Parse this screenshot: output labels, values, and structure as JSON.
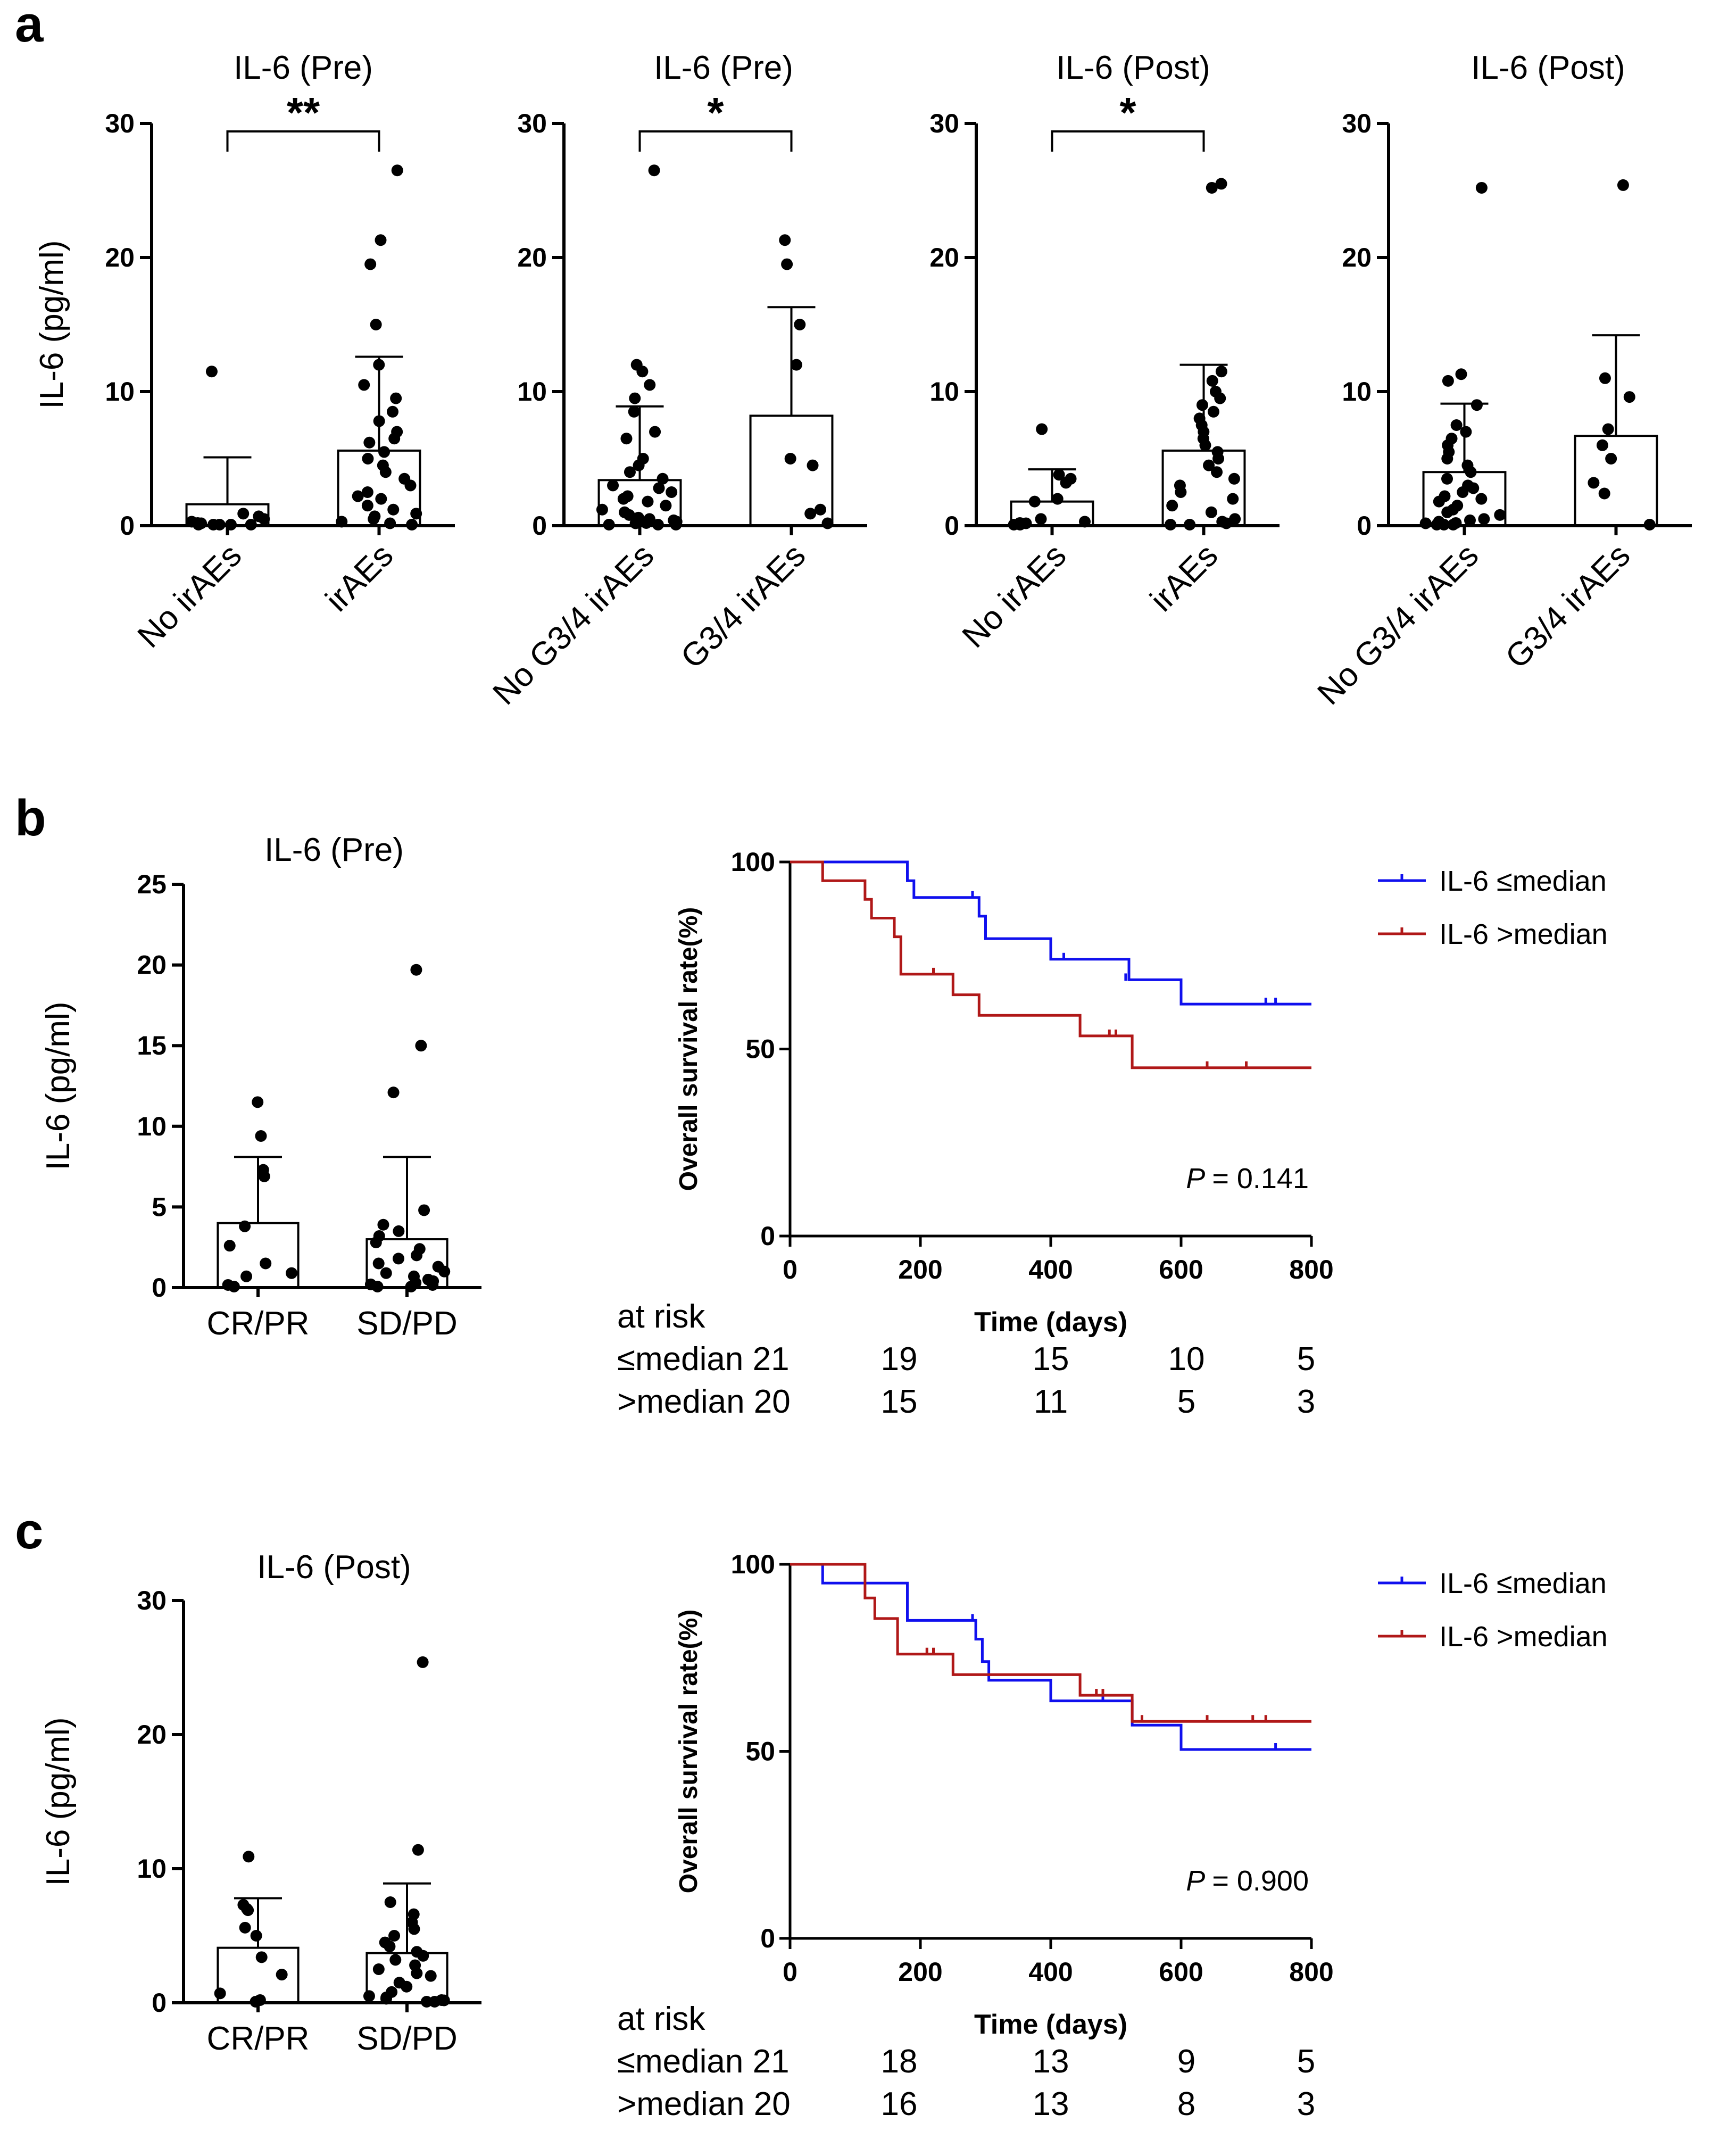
{
  "panels": {
    "a": "a",
    "b": "b",
    "c": "c"
  },
  "colors": {
    "low": "#1010ee",
    "high": "#b01818",
    "ink": "#000000"
  },
  "chart_data": [
    {
      "id": "a1",
      "type": "bar",
      "title": "IL-6 (Pre)",
      "ylabel": "IL-6 (pg/ml)",
      "ylim": [
        0,
        30
      ],
      "yticks": [
        0,
        10,
        20,
        30
      ],
      "categories": [
        "No irAEs",
        "irAEs"
      ],
      "means": [
        1.6,
        5.6
      ],
      "sd_upper": [
        5.1,
        12.6
      ],
      "significance": "**",
      "points": [
        [
          11.5,
          0.9,
          0.7,
          0.5,
          0.3,
          0.2,
          0.1,
          0.0,
          0.0,
          0.0,
          0.0,
          0.0
        ],
        [
          26.5,
          21.3,
          19.5,
          15.0,
          12.0,
          10.5,
          9.5,
          8.5,
          7.8,
          7.0,
          6.5,
          6.2,
          5.5,
          5.0,
          4.5,
          4.0,
          3.5,
          3.0,
          2.5,
          2.2,
          2.0,
          1.5,
          1.2,
          0.9,
          0.7,
          0.5,
          0.3,
          0.1,
          0.0
        ]
      ]
    },
    {
      "id": "a2",
      "type": "bar",
      "title": "IL-6 (Pre)",
      "ylabel": "",
      "ylim": [
        0,
        30
      ],
      "yticks": [
        0,
        10,
        20,
        30
      ],
      "categories": [
        "No G3/4 irAEs",
        "G3/4 irAEs"
      ],
      "means": [
        3.4,
        8.2
      ],
      "sd_upper": [
        8.9,
        16.3
      ],
      "significance": "*",
      "points": [
        [
          26.5,
          12.0,
          11.5,
          10.5,
          9.5,
          8.5,
          7.0,
          6.5,
          5.0,
          4.5,
          4.0,
          3.5,
          3.0,
          2.8,
          2.5,
          2.2,
          2.0,
          1.8,
          1.5,
          1.2,
          1.0,
          0.8,
          0.6,
          0.5,
          0.4,
          0.3,
          0.2,
          0.1,
          0.0,
          0.0,
          0.0
        ],
        [
          21.3,
          19.5,
          15.0,
          12.0,
          5.0,
          4.5,
          1.2,
          0.9,
          0.1
        ]
      ]
    },
    {
      "id": "a3",
      "type": "bar",
      "title": "IL-6 (Post)",
      "ylabel": "",
      "ylim": [
        0,
        30
      ],
      "yticks": [
        0,
        10,
        20,
        30
      ],
      "categories": [
        "No irAEs",
        "irAEs"
      ],
      "means": [
        1.8,
        5.6
      ],
      "sd_upper": [
        4.2,
        12.0
      ],
      "significance": "*",
      "points": [
        [
          7.2,
          3.8,
          3.5,
          3.2,
          2.0,
          1.8,
          0.5,
          0.3,
          0.2,
          0.1,
          0.0,
          0.0
        ],
        [
          25.5,
          25.2,
          11.5,
          10.8,
          10.0,
          9.5,
          9.0,
          8.5,
          8.0,
          7.5,
          7.0,
          6.5,
          6.0,
          5.5,
          5.0,
          4.5,
          4.0,
          3.5,
          3.0,
          2.5,
          2.0,
          1.5,
          1.0,
          0.5,
          0.3,
          0.1,
          0.0,
          0.0
        ]
      ]
    },
    {
      "id": "a4",
      "type": "bar",
      "title": "IL-6 (Post)",
      "ylabel": "",
      "ylim": [
        0,
        30
      ],
      "yticks": [
        0,
        10,
        20,
        30
      ],
      "categories": [
        "No G3/4 irAEs",
        "G3/4 irAEs"
      ],
      "means": [
        4.0,
        6.7
      ],
      "sd_upper": [
        9.1,
        14.2
      ],
      "significance": "",
      "points": [
        [
          25.2,
          11.3,
          10.8,
          9.0,
          7.5,
          7.0,
          6.5,
          6.0,
          5.5,
          5.0,
          4.5,
          4.0,
          3.5,
          3.0,
          2.8,
          2.5,
          2.2,
          2.0,
          1.8,
          1.5,
          1.2,
          1.0,
          0.8,
          0.5,
          0.4,
          0.3,
          0.2,
          0.1,
          0.0,
          0.0,
          0.0
        ],
        [
          25.4,
          11.0,
          9.6,
          7.2,
          6.0,
          5.0,
          3.2,
          2.4,
          0.0
        ]
      ]
    },
    {
      "id": "b1",
      "type": "bar",
      "title": "IL-6 (Pre)",
      "ylabel": "IL-6 (pg/ml)",
      "ylim": [
        0,
        25
      ],
      "yticks": [
        0,
        5,
        10,
        15,
        20,
        25
      ],
      "categories": [
        "CR/PR",
        "SD/PD"
      ],
      "means": [
        4.0,
        3.0
      ],
      "sd_upper": [
        8.1,
        8.1
      ],
      "significance": "",
      "points": [
        [
          11.5,
          9.4,
          7.3,
          6.9,
          3.8,
          2.6,
          1.5,
          0.9,
          0.7,
          0.1,
          0.0
        ],
        [
          19.7,
          15.0,
          12.1,
          4.8,
          3.9,
          3.5,
          3.2,
          2.8,
          2.4,
          2.0,
          1.8,
          1.5,
          1.3,
          1.0,
          0.9,
          0.7,
          0.5,
          0.4,
          0.3,
          0.2,
          0.1,
          0.0,
          0.0
        ]
      ]
    },
    {
      "id": "b2",
      "type": "line",
      "title": "",
      "xlabel": "Time (days)",
      "ylabel": "Overall survival rate(%)",
      "xlim": [
        0,
        800
      ],
      "ylim": [
        0,
        100
      ],
      "xticks": [
        0,
        200,
        400,
        600,
        800
      ],
      "yticks": [
        0,
        50,
        100
      ],
      "p_label": "P",
      "p_value": "= 0.141",
      "legend": [
        "IL-6 ≤median",
        "IL-6 >median"
      ],
      "series": [
        {
          "name": "IL-6 ≤median",
          "x": [
            0,
            180,
            180,
            190,
            190,
            290,
            290,
            300,
            300,
            400,
            400,
            520,
            520,
            600,
            600,
            800
          ],
          "y": [
            100,
            100,
            95,
            95,
            90.5,
            90.5,
            85.5,
            85.5,
            79.5,
            79.5,
            74,
            74,
            68.5,
            68.5,
            62,
            62
          ],
          "censor_x": [
            280,
            420,
            515,
            730,
            745
          ],
          "censor_y": [
            90.5,
            74,
            68.5,
            62,
            62
          ]
        },
        {
          "name": "IL-6 >median",
          "x": [
            0,
            50,
            50,
            115,
            115,
            125,
            125,
            160,
            160,
            170,
            170,
            250,
            250,
            290,
            290,
            445,
            445,
            525,
            525,
            800
          ],
          "y": [
            100,
            100,
            95,
            95,
            90,
            90,
            85,
            85,
            80,
            80,
            70,
            70,
            64.5,
            64.5,
            59,
            59,
            53.5,
            53.5,
            45,
            45
          ],
          "censor_x": [
            220,
            490,
            500,
            640,
            700
          ],
          "censor_y": [
            70,
            53.5,
            53.5,
            45,
            45
          ]
        }
      ],
      "risk_table": {
        "label": "at risk",
        "rows": [
          {
            "name": "≤median 21",
            "values": [
              "19",
              "15",
              "10",
              "5"
            ]
          },
          {
            "name": ">median 20",
            "values": [
              "15",
              "11",
              "5",
              "3"
            ]
          }
        ]
      }
    },
    {
      "id": "c1",
      "type": "bar",
      "title": "IL-6 (Post)",
      "ylabel": "IL-6 (pg/ml)",
      "ylim": [
        0,
        30
      ],
      "yticks": [
        0,
        10,
        20,
        30
      ],
      "categories": [
        "CR/PR",
        "SD/PD"
      ],
      "means": [
        4.1,
        3.7
      ],
      "sd_upper": [
        7.8,
        8.9
      ],
      "significance": "",
      "points": [
        [
          10.9,
          7.3,
          7.0,
          6.9,
          5.6,
          5.0,
          3.4,
          2.1,
          0.7,
          0.2,
          0.0
        ],
        [
          25.4,
          11.4,
          7.5,
          6.6,
          6.0,
          5.5,
          5.0,
          4.5,
          4.2,
          3.8,
          3.5,
          3.2,
          2.8,
          2.5,
          2.2,
          2.0,
          1.5,
          1.2,
          0.8,
          0.5,
          0.4,
          0.3,
          0.2,
          0.1,
          0.0,
          0.0
        ]
      ]
    },
    {
      "id": "c2",
      "type": "line",
      "title": "",
      "xlabel": "Time (days)",
      "ylabel": "Overall survival rate(%)",
      "xlim": [
        0,
        800
      ],
      "ylim": [
        0,
        100
      ],
      "xticks": [
        0,
        200,
        400,
        600,
        800
      ],
      "yticks": [
        0,
        50,
        100
      ],
      "p_label": "P",
      "p_value": "= 0.900",
      "legend": [
        "IL-6 ≤median",
        "IL-6 >median"
      ],
      "series": [
        {
          "name": "IL-6 ≤median",
          "x": [
            0,
            50,
            50,
            180,
            180,
            285,
            285,
            295,
            295,
            305,
            305,
            400,
            400,
            525,
            525,
            600,
            600,
            800
          ],
          "y": [
            100,
            100,
            95,
            95,
            85,
            85,
            80,
            80,
            74,
            74,
            69,
            69,
            63.5,
            63.5,
            57,
            57,
            50.5,
            50.5
          ],
          "censor_x": [
            280,
            480,
            745
          ],
          "censor_y": [
            85,
            63.5,
            50.5
          ]
        },
        {
          "name": "IL-6 >median",
          "x": [
            0,
            115,
            115,
            130,
            130,
            165,
            165,
            250,
            250,
            445,
            445,
            525,
            525,
            800
          ],
          "y": [
            100,
            100,
            91,
            91,
            85.5,
            85.5,
            76,
            76,
            70.5,
            70.5,
            65,
            65,
            58,
            58
          ],
          "censor_x": [
            210,
            220,
            470,
            480,
            540,
            640,
            710,
            730
          ],
          "censor_y": [
            76,
            76,
            65,
            65,
            58,
            58,
            58,
            58
          ]
        }
      ],
      "risk_table": {
        "label": "at risk",
        "rows": [
          {
            "name": "≤median 21",
            "values": [
              "18",
              "13",
              "9",
              "5"
            ]
          },
          {
            "name": ">median 20",
            "values": [
              "16",
              "13",
              "8",
              "3"
            ]
          }
        ]
      }
    }
  ]
}
